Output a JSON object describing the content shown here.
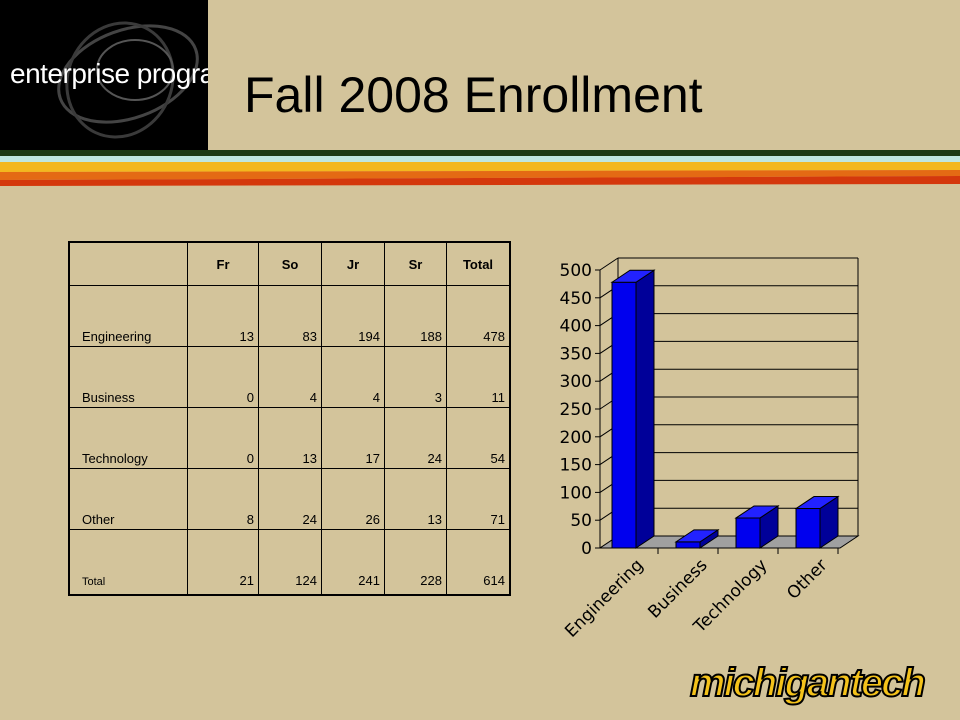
{
  "header": {
    "logo_text": "enterprise program",
    "title": "Fall 2008 Enrollment",
    "brand_logo": "michigantech"
  },
  "colors": {
    "background": "#d3c49b",
    "stripe_dark_green": "#1d3a14",
    "stripe_light_cyan": "#bfe6df",
    "stripe_yellow": "#f3b71e",
    "stripe_orange": "#e46a14",
    "stripe_red": "#d4380c",
    "bar_color": "#0000ee",
    "brand_yellow": "#f4c21a"
  },
  "table": {
    "columns": [
      "",
      "Fr",
      "So",
      "Jr",
      "Sr",
      "Total"
    ],
    "rows": [
      {
        "label": "Engineering",
        "values": [
          "13",
          "83",
          "194",
          "188",
          "478"
        ]
      },
      {
        "label": "Business",
        "values": [
          "0",
          "4",
          "4",
          "3",
          "11"
        ]
      },
      {
        "label": "Technology",
        "values": [
          "0",
          "13",
          "17",
          "24",
          "54"
        ]
      },
      {
        "label": "Other",
        "values": [
          "8",
          "24",
          "26",
          "13",
          "71"
        ]
      },
      {
        "label": "Total",
        "values": [
          "21",
          "124",
          "241",
          "228",
          "614"
        ]
      }
    ]
  },
  "chart_data": {
    "type": "bar",
    "categories": [
      "Engineering",
      "Business",
      "Technology",
      "Other"
    ],
    "values": [
      478,
      11,
      54,
      71
    ],
    "title": "",
    "xlabel": "",
    "ylabel": "",
    "ylim": [
      0,
      500
    ],
    "yticks": [
      "0",
      "50",
      "100",
      "150",
      "200",
      "250",
      "300",
      "350",
      "400",
      "450",
      "500"
    ],
    "grid": true,
    "style": "3d"
  }
}
